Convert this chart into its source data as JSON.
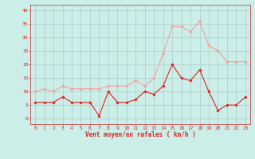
{
  "x": [
    0,
    1,
    2,
    3,
    4,
    5,
    6,
    7,
    8,
    9,
    10,
    11,
    12,
    13,
    14,
    15,
    16,
    17,
    18,
    19,
    20,
    21,
    22,
    23
  ],
  "avg_wind": [
    6,
    6,
    6,
    8,
    6,
    6,
    6,
    1,
    10,
    6,
    6,
    7,
    10,
    9,
    12,
    20,
    15,
    14,
    18,
    10,
    3,
    5,
    5,
    8
  ],
  "gust_wind": [
    10,
    11,
    10,
    12,
    11,
    11,
    11,
    11,
    12,
    12,
    12,
    14,
    12,
    15,
    24,
    34,
    34,
    32,
    36,
    27,
    25,
    21,
    21,
    21
  ],
  "avg_color": "#dd2222",
  "gust_color": "#f0a0a0",
  "bg_color": "#cceee8",
  "grid_color": "#aacccc",
  "xlabel": "Vent moyen/en rafales ( km/h )",
  "xlabel_color": "#dd2222",
  "tick_color": "#dd2222",
  "spine_color": "#cc4444",
  "ylim": [
    -2,
    42
  ],
  "xlim": [
    -0.5,
    23.5
  ],
  "yticks": [
    0,
    5,
    10,
    15,
    20,
    25,
    30,
    35,
    40
  ],
  "xticks": [
    0,
    1,
    2,
    3,
    4,
    5,
    6,
    7,
    8,
    9,
    10,
    11,
    12,
    13,
    14,
    15,
    16,
    17,
    18,
    19,
    20,
    21,
    22,
    23
  ]
}
